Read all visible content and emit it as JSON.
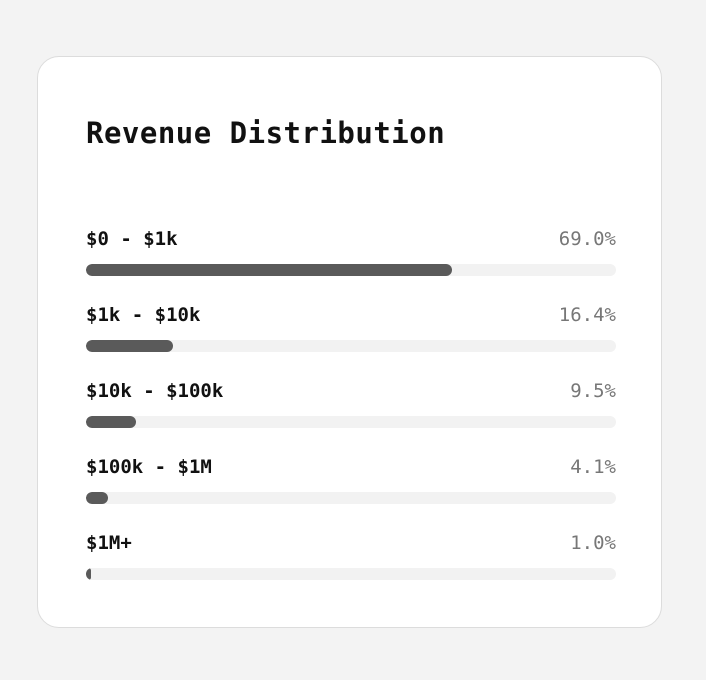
{
  "card": {
    "title": "Revenue Distribution"
  },
  "chart_data": {
    "type": "bar",
    "orientation": "horizontal",
    "title": "Revenue Distribution",
    "categories": [
      "$0 - $1k",
      "$1k - $10k",
      "$10k - $100k",
      "$100k - $1M",
      "$1M+"
    ],
    "values": [
      69.0,
      16.4,
      9.5,
      4.1,
      1.0
    ],
    "value_labels": [
      "69.0%",
      "16.4%",
      "9.5%",
      "4.1%",
      "1.0%"
    ],
    "unit": "%",
    "xlim": [
      0,
      100
    ],
    "grid": false,
    "bar_color": "#5a5a5a",
    "track_color": "#f2f2f2"
  }
}
